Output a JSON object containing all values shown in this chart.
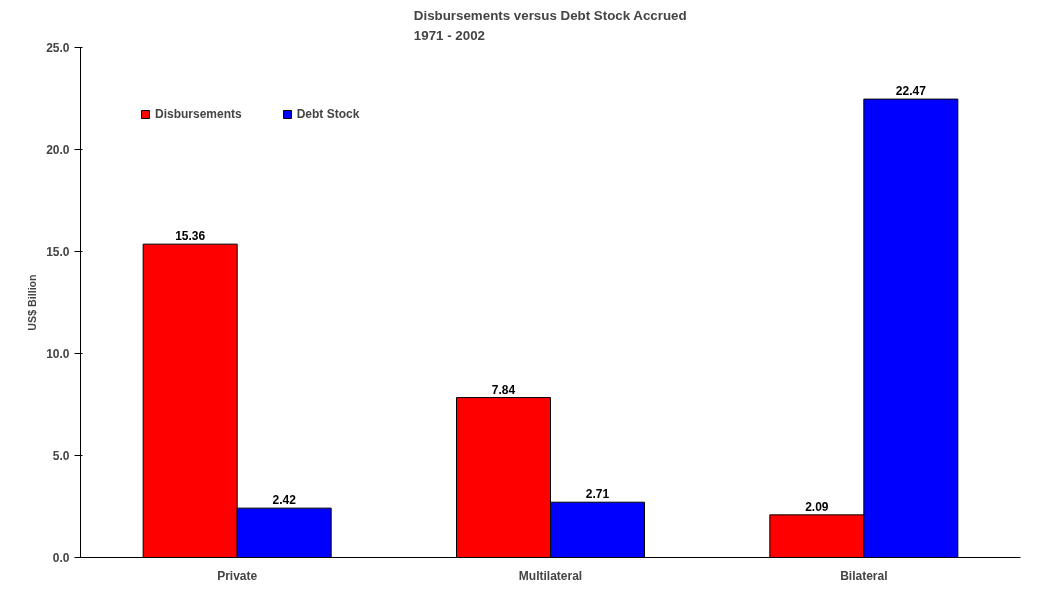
{
  "chart_data": {
    "type": "bar",
    "title": "Disbursements versus Debt Stock Accrued\n1971 - 2002",
    "ylabel": "US$ Billion",
    "categories": [
      "Private",
      "Multilateral",
      "Bilateral"
    ],
    "series": [
      {
        "name": "Disbursements",
        "color": "#ff0000",
        "values": [
          15.36,
          7.84,
          2.09
        ]
      },
      {
        "name": "Debt Stock",
        "color": "#0000ff",
        "values": [
          2.42,
          2.71,
          22.47
        ]
      }
    ],
    "ylim": [
      0,
      25
    ],
    "yticks": [
      {
        "value": 0,
        "label": "0.0"
      },
      {
        "value": 5,
        "label": "5.0"
      },
      {
        "value": 10,
        "label": "10.0"
      },
      {
        "value": 15,
        "label": "15.0"
      },
      {
        "value": 20,
        "label": "20.0"
      },
      {
        "value": 25,
        "label": "25.0"
      }
    ],
    "data_labels": true,
    "grid": false,
    "legend": "top left"
  }
}
